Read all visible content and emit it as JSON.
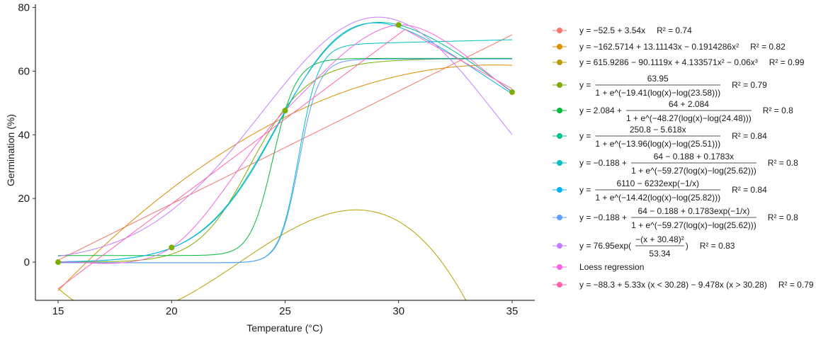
{
  "chart_data": {
    "type": "line",
    "title": "",
    "xlabel": "Temperature (°C)",
    "ylabel": "Germination (%)",
    "xlim": [
      14,
      36
    ],
    "ylim": [
      -12,
      81
    ],
    "xticks": [
      "15",
      "20",
      "25",
      "30",
      "35"
    ],
    "yticks": [
      "0",
      "20",
      "40",
      "60",
      "80"
    ],
    "grid": false,
    "legend_position": "right",
    "observed_points": {
      "x": [
        15,
        20,
        25,
        30,
        35
      ],
      "y": [
        0,
        4.6,
        47.6,
        74.5,
        53.4
      ],
      "color": "#7CAE00"
    },
    "series": [
      {
        "name": "linear",
        "color": "#F8766D",
        "lines": [
          "y = −52.5 + 3.54x"
        ],
        "r2": "R² = 0.74"
      },
      {
        "name": "quadratic",
        "color": "#DE8C00",
        "lines": [
          "y = −162.5714 + 13.11143x − 0.1914286x²"
        ],
        "r2": "R² = 0.82"
      },
      {
        "name": "cubic",
        "color": "#B79F00",
        "lines": [
          "y = 615.9286 − 90.1119x + 4.133571x² − 0.06x³"
        ],
        "r2": "R² = 0.99"
      },
      {
        "name": "logistic-3p",
        "color": "#7CAE00",
        "lines": [
          "63.95",
          "1 + e^(−19.41(log(x)−log(23.58)))"
        ],
        "prefix": "y =",
        "r2": "R² = 0.79"
      },
      {
        "name": "logistic-4p",
        "color": "#00BA38",
        "lines": [
          "64 + 2.084",
          "1 + e^(−48.27(log(x)−log(24.48)))"
        ],
        "prefix": "y = 2.084 +",
        "r2": "R² = 0.8"
      },
      {
        "name": "logistic-linear",
        "color": "#00C08B",
        "lines": [
          "250.8 − 5.618x",
          "1 + e^(−13.96(log(x)−log(25.51)))"
        ],
        "prefix": "y =",
        "r2": "R² = 0.84"
      },
      {
        "name": "logistic-5p",
        "color": "#00BFC4",
        "lines": [
          "64 − 0.188 + 0.1783x",
          "1 + e^(−59.27(log(x)−log(25.62)))"
        ],
        "prefix": "y = −0.188 +",
        "r2": "R² = 0.8"
      },
      {
        "name": "logistic-exp",
        "color": "#00B4F0",
        "lines": [
          "6110 − 6232exp(−1/x)",
          "1 + e^(−14.42(log(x)−log(25.82)))"
        ],
        "prefix": "y =",
        "r2": "R² = 0.84"
      },
      {
        "name": "logistic-exp-5p",
        "color": "#619CFF",
        "lines": [
          "64 − 0.188 + 0.1783exp(−1/x)",
          "1 + e^(−59.27(log(x)−log(25.62)))"
        ],
        "prefix": "y = −0.188 +",
        "r2": "R² = 0.8"
      },
      {
        "name": "gaussian",
        "color": "#C77CFF",
        "lines": [
          "−(x + 30.48)²",
          "53.34"
        ],
        "prefix": "y = 76.95exp(",
        "suffix": ")",
        "r2": "R² = 0.83"
      },
      {
        "name": "loess",
        "color": "#F564E3",
        "lines": [
          "Loess regression"
        ],
        "r2": ""
      },
      {
        "name": "segmented",
        "color": "#FF64B0",
        "lines": [
          "y = −88.3 + 5.33x (x < 30.28) − 9.478x (x > 30.28)"
        ],
        "r2": "R² = 0.79"
      }
    ]
  }
}
